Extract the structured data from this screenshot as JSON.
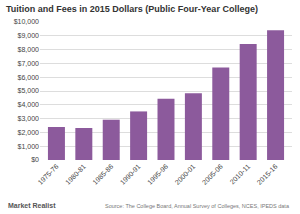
{
  "chart_data": {
    "type": "bar",
    "title": "Tuition and Fees in 2015 Dollars (Public Four-Year College)",
    "categories": [
      "1975-76",
      "1980-81",
      "1985-86",
      "1990-91",
      "1995-96",
      "2000-01",
      "2005-06",
      "2010-11",
      "2015-16"
    ],
    "values": [
      2390,
      2320,
      2920,
      3520,
      4430,
      4840,
      6710,
      8400,
      9410
    ],
    "color": "#8c5a9c",
    "ylim": [
      0,
      10000
    ],
    "yticks": [
      {
        "value": 0,
        "label": "$0"
      },
      {
        "value": 1000,
        "label": "$1,000"
      },
      {
        "value": 2000,
        "label": "$2,000"
      },
      {
        "value": 3000,
        "label": "$3,000"
      },
      {
        "value": 4000,
        "label": "$4,000"
      },
      {
        "value": 5000,
        "label": "$5,000"
      },
      {
        "value": 6000,
        "label": "$6,000"
      },
      {
        "value": 7000,
        "label": "$7,000"
      },
      {
        "value": 8000,
        "label": "$8,000"
      },
      {
        "value": 9000,
        "label": "$9,000"
      },
      {
        "value": 10000,
        "label": "$10,000"
      }
    ],
    "grid": true,
    "annotations": [
      "Market Realist",
      "Source: The College Board, Annual Survey of Colleges, NCES, IPEDS data"
    ]
  }
}
